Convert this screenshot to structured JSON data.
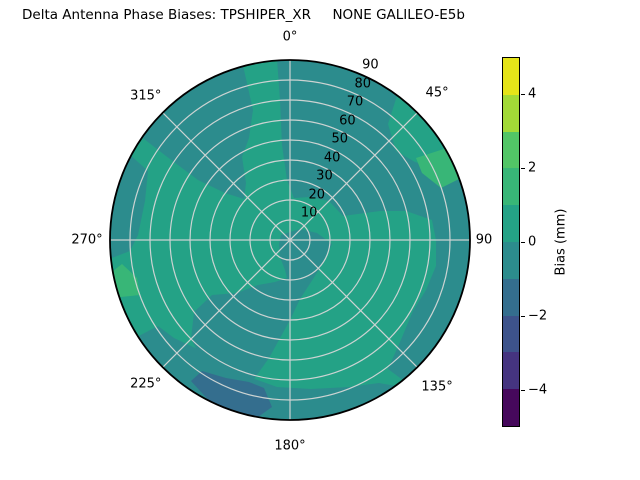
{
  "title": "Delta Antenna Phase Biases: TPSHIPER_XR     NONE GALILEO-E5b",
  "polar": {
    "angle_labels": [
      "0°",
      "45°",
      "90",
      "135°",
      "180°",
      "225°",
      "270°",
      "315°"
    ],
    "radial_labels": [
      "10",
      "20",
      "30",
      "40",
      "50",
      "60",
      "70",
      "80",
      "90"
    ]
  },
  "colorbar": {
    "label": "Bias (mm)",
    "range": [
      -5,
      5
    ],
    "ticks": [
      {
        "value": 4,
        "text": "4"
      },
      {
        "value": 2,
        "text": "2"
      },
      {
        "value": 0,
        "text": "0"
      },
      {
        "value": -2,
        "text": "−2"
      },
      {
        "value": -4,
        "text": "−4"
      }
    ],
    "band_colors_top_to_bottom": [
      "#e5e419",
      "#a2da37",
      "#52c566",
      "#38b677",
      "#24a286",
      "#2c8c8d",
      "#346e8e",
      "#3d538b",
      "#453480",
      "#46085c"
    ]
  },
  "chart_data": {
    "type": "heatmap",
    "subtype": "polar-filled-contour",
    "title": "Delta Antenna Phase Biases: TPSHIPER_XR     NONE GALILEO-E5b",
    "colorbar_label": "Bias (mm)",
    "value_range_mm": [
      -5,
      5
    ],
    "contour_band_width_mm": 1,
    "theta_ticks_deg": [
      0,
      45,
      90,
      135,
      180,
      225,
      270,
      315
    ],
    "theta_zero_position": "top",
    "theta_direction": "clockwise",
    "r_ticks": [
      10,
      20,
      30,
      40,
      50,
      60,
      70,
      80,
      90
    ],
    "r_max": 90,
    "legend_position": "right-colorbar",
    "grid": true,
    "regions": [
      {
        "band_mm": "0 to 1",
        "coverage": "base color over most of the disc (left, top-left inner, lower-left, wedge along east spoke r 55-145, wedge at rim 35°-72°)"
      },
      {
        "band_mm": "-1 to 0",
        "coverage": "large region from ~355° through 145° mid-radius to rim; right rim 80°-145°; bottom rim band 145°-238°; central lobe extending to lower-left (θ 170°-235°, r up to ~150); upper-left blob θ 305°-345° r 55-rim; thin west rim sliver θ 263°-299°"
      },
      {
        "band_mm": "1 to 2",
        "coverage": "small rim patches near θ 57°-70° and θ 250°-262°"
      },
      {
        "band_mm": "-2 to -1",
        "coverage": "small patch near bottom rim θ 186°-215°, r ~150-185"
      }
    ]
  }
}
